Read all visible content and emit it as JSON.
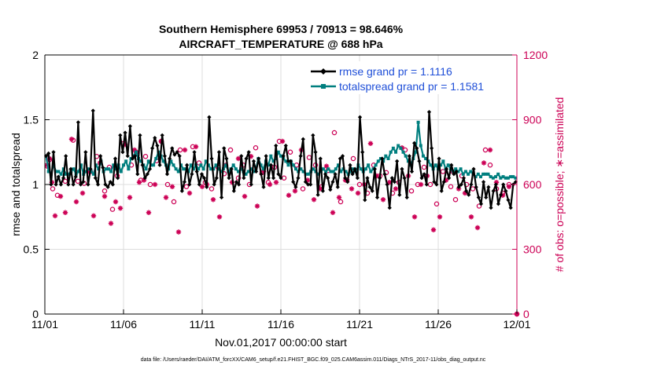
{
  "chart_data": {
    "type": "line",
    "title": "Southern Hemisphere 69953 / 70913 = 98.646%",
    "subtitle": "AIRCRAFT_TEMPERATURE @ 688 hPa",
    "xlabel": "Nov.01,2017 00:00:00 start",
    "ylabel_left": "rmse and totalspread",
    "ylabel_right": "# of obs: o=possible; ∗=assimilated",
    "x_tick_labels": [
      "11/01",
      "11/06",
      "11/11",
      "11/16",
      "11/21",
      "11/26",
      "12/01"
    ],
    "xlim_days": [
      0,
      30
    ],
    "ylim_left": [
      0,
      2
    ],
    "yticks_left": [
      "0",
      "0.5",
      "1",
      "1.5",
      "2"
    ],
    "ylim_right": [
      0,
      1200
    ],
    "yticks_right": [
      "0",
      "300",
      "600",
      "900",
      "1200"
    ],
    "series": [
      {
        "name": "rmse grand pr = 1.1116",
        "color": "#000000",
        "marker": "diamond",
        "values": [
          1.22,
          1.24,
          1.0,
          1.25,
          1.0,
          1.06,
          1.0,
          1.05,
          1.22,
          1.0,
          1.12,
          1.0,
          1.06,
          1.48,
          1.0,
          1.02,
          1.25,
          1.0,
          1.12,
          1.57,
          1.05,
          1.0,
          1.22,
          1.13,
          1.0,
          0.98,
          1.02,
          1.0,
          1.2,
          1.05,
          1.38,
          1.25,
          1.4,
          1.22,
          1.45,
          1.2,
          1.22,
          1.08,
          1.38,
          1.15,
          1.05,
          1.08,
          1.12,
          1.28,
          1.36,
          1.3,
          1.15,
          1.38,
          1.22,
          1.08,
          1.2,
          1.28,
          1.23,
          1.25,
          1.22,
          0.95,
          1.02,
          1.15,
          1.0,
          1.08,
          1.25,
          1.1,
          1.0,
          1.08,
          1.05,
          0.98,
          1.52,
          1.2,
          1.0,
          1.05,
          1.25,
          0.9,
          1.28,
          1.2,
          1.05,
          1.12,
          0.95,
          1.02,
          1.0,
          1.22,
          1.05,
          1.2,
          1.25,
          1.0,
          1.18,
          1.1,
          1.2,
          1.08,
          0.98,
          1.22,
          1.05,
          1.15,
          1.05,
          1.3,
          1.08,
          1.05,
          1.22,
          1.3,
          1.18,
          1.18,
          1.02,
          0.98,
          1.05,
          1.22,
          1.35,
          1.02,
          1.0,
          1.0,
          1.38,
          1.25,
          0.92,
          1.2,
          0.95,
          1.08,
          1.05,
          0.96,
          1.02,
          1.08,
          0.98,
          1.2,
          1.22,
          1.05,
          1.02,
          1.15,
          1.08,
          1.12,
          1.05,
          1.52,
          1.25,
          0.88,
          1.05,
          0.98,
          0.95,
          1.12,
          0.9,
          1.05,
          1.2,
          1.08,
          1.0,
          0.82,
          1.05,
          1.02,
          1.18,
          0.92,
          1.12,
          1.05,
          0.9,
          1.22,
          1.1,
          1.32,
          1.28,
          1.18,
          1.05,
          1.08,
          1.0,
          1.56,
          1.28,
          1.02,
          1.0,
          1.2,
          0.95,
          1.02,
          1.12,
          1.05,
          1.15,
          1.08,
          1.1,
          0.98,
          1.0,
          1.05,
          0.95,
          0.92,
          1.0,
          1.12,
          0.98,
          0.9,
          0.85,
          1.02,
          0.9,
          0.98,
          0.82,
          0.95,
          1.0,
          0.85,
          0.92,
          1.0,
          0.95,
          0.88,
          0.82,
          1.0,
          1.02
        ]
      },
      {
        "name": "totalspread grand pr = 1.1581",
        "color": "#007f7f",
        "marker": "square",
        "values": [
          1.22,
          1.1,
          1.08,
          1.15,
          1.1,
          1.1,
          1.08,
          1.12,
          1.08,
          1.08,
          1.1,
          1.12,
          1.08,
          1.1,
          1.15,
          1.08,
          1.1,
          1.12,
          1.1,
          1.08,
          1.15,
          1.12,
          1.18,
          1.1,
          1.12,
          1.12,
          1.1,
          1.15,
          1.12,
          1.15,
          1.1,
          1.15,
          1.18,
          1.12,
          1.2,
          1.22,
          1.25,
          1.2,
          1.18,
          1.15,
          1.12,
          1.18,
          1.15,
          1.15,
          1.2,
          1.25,
          1.22,
          1.18,
          1.15,
          1.12,
          1.18,
          1.15,
          1.12,
          1.1,
          1.15,
          1.12,
          1.12,
          1.1,
          1.15,
          1.12,
          1.15,
          1.12,
          1.15,
          1.12,
          1.18,
          1.15,
          1.12,
          1.12,
          1.15,
          1.12,
          1.1,
          1.12,
          1.15,
          1.1,
          1.12,
          1.15,
          1.12,
          1.1,
          1.12,
          1.1,
          1.08,
          1.1,
          1.12,
          1.1,
          1.12,
          1.2,
          1.15,
          1.12,
          1.18,
          1.15,
          1.22,
          1.18,
          1.2,
          1.25,
          1.22,
          1.2,
          1.18,
          1.15,
          1.18,
          1.15,
          1.12,
          1.1,
          1.12,
          1.1,
          1.08,
          1.08,
          1.1,
          1.12,
          1.1,
          1.08,
          1.1,
          1.12,
          1.1,
          1.12,
          1.1,
          1.1,
          1.12,
          1.15,
          1.1,
          1.12,
          1.1,
          1.08,
          1.1,
          1.12,
          1.1,
          1.15,
          1.12,
          1.1,
          1.12,
          1.15,
          1.1,
          1.12,
          1.15,
          1.18,
          1.2,
          1.18,
          1.22,
          1.2,
          1.25,
          1.28,
          1.25,
          1.3,
          1.28,
          1.25,
          1.22,
          1.18,
          1.15,
          1.2,
          1.25,
          1.48,
          1.3,
          1.22,
          1.2,
          1.18,
          1.15,
          1.12,
          1.15,
          1.12,
          1.15,
          1.18,
          1.12,
          1.15,
          1.12,
          1.1,
          1.12,
          1.1,
          1.12,
          1.08,
          1.1,
          1.08,
          1.1,
          1.08,
          1.06,
          1.08,
          1.06,
          1.08,
          1.08,
          1.08,
          1.06,
          1.05,
          1.06,
          1.08,
          1.05,
          1.06,
          1.05,
          1.05,
          1.06,
          1.06,
          1.05
        ]
      },
      {
        "name": "possible obs",
        "color": "#cc0055",
        "marker": "circle",
        "axis": "right",
        "points": [
          [
            0.15,
            685
          ],
          [
            0.3,
            715
          ],
          [
            0.5,
            580
          ],
          [
            0.8,
            550
          ],
          [
            1.3,
            615
          ],
          [
            1.8,
            805
          ],
          [
            2.1,
            615
          ],
          [
            2.5,
            605
          ],
          [
            2.9,
            660
          ],
          [
            3.3,
            730
          ],
          [
            3.8,
            570
          ],
          [
            4.1,
            680
          ],
          [
            4.3,
            485
          ],
          [
            4.6,
            640
          ],
          [
            5.0,
            790
          ],
          [
            5.5,
            690
          ],
          [
            5.8,
            750
          ],
          [
            6.1,
            620
          ],
          [
            6.4,
            730
          ],
          [
            6.7,
            600
          ],
          [
            7.1,
            710
          ],
          [
            7.4,
            800
          ],
          [
            7.8,
            600
          ],
          [
            8.2,
            520
          ],
          [
            8.6,
            760
          ],
          [
            9.0,
            590
          ],
          [
            9.4,
            775
          ],
          [
            9.8,
            700
          ],
          [
            10.2,
            610
          ],
          [
            10.6,
            580
          ],
          [
            11.0,
            680
          ],
          [
            11.4,
            650
          ],
          [
            11.8,
            760
          ],
          [
            12.3,
            630
          ],
          [
            12.6,
            690
          ],
          [
            13.0,
            600
          ],
          [
            13.4,
            770
          ],
          [
            13.8,
            655
          ],
          [
            14.2,
            610
          ],
          [
            14.6,
            680
          ],
          [
            14.9,
            800
          ],
          [
            15.2,
            630
          ],
          [
            15.6,
            750
          ],
          [
            16.0,
            690
          ],
          [
            16.4,
            580
          ],
          [
            16.8,
            725
          ],
          [
            17.2,
            690
          ],
          [
            17.6,
            590
          ],
          [
            18.0,
            665
          ],
          [
            18.4,
            840
          ],
          [
            18.8,
            520
          ],
          [
            19.2,
            620
          ],
          [
            19.6,
            720
          ],
          [
            20.0,
            600
          ],
          [
            20.5,
            560
          ],
          [
            20.9,
            690
          ],
          [
            21.3,
            640
          ],
          [
            21.7,
            655
          ],
          [
            22.1,
            560
          ],
          [
            22.5,
            610
          ],
          [
            22.9,
            760
          ],
          [
            23.3,
            570
          ],
          [
            23.7,
            600
          ],
          [
            24.1,
            680
          ],
          [
            24.5,
            600
          ],
          [
            24.9,
            510
          ],
          [
            25.3,
            660
          ],
          [
            25.8,
            590
          ],
          [
            26.1,
            530
          ],
          [
            26.5,
            640
          ],
          [
            26.8,
            600
          ],
          [
            27.2,
            580
          ],
          [
            27.6,
            500
          ],
          [
            28.0,
            760
          ],
          [
            28.3,
            690
          ],
          [
            28.7,
            580
          ],
          [
            29.1,
            560
          ],
          [
            29.5,
            600
          ],
          [
            30.0,
            0
          ]
        ]
      },
      {
        "name": "assimilated obs",
        "color": "#cc0055",
        "marker": "asterisk",
        "axis": "right",
        "points": [
          [
            0.15,
            690
          ],
          [
            0.3,
            720
          ],
          [
            0.45,
            610
          ],
          [
            0.65,
            455
          ],
          [
            1.0,
            545
          ],
          [
            1.3,
            470
          ],
          [
            1.7,
            810
          ],
          [
            2.0,
            520
          ],
          [
            2.4,
            560
          ],
          [
            2.8,
            660
          ],
          [
            3.1,
            455
          ],
          [
            3.5,
            700
          ],
          [
            3.8,
            545
          ],
          [
            4.2,
            420
          ],
          [
            4.5,
            520
          ],
          [
            4.8,
            490
          ],
          [
            5.1,
            785
          ],
          [
            5.4,
            540
          ],
          [
            5.7,
            760
          ],
          [
            6.0,
            610
          ],
          [
            6.3,
            620
          ],
          [
            6.6,
            470
          ],
          [
            7.0,
            600
          ],
          [
            7.4,
            800
          ],
          [
            7.7,
            540
          ],
          [
            8.1,
            590
          ],
          [
            8.5,
            380
          ],
          [
            8.9,
            760
          ],
          [
            9.2,
            560
          ],
          [
            9.6,
            775
          ],
          [
            10.0,
            590
          ],
          [
            10.3,
            600
          ],
          [
            10.7,
            530
          ],
          [
            11.1,
            450
          ],
          [
            11.5,
            690
          ],
          [
            11.9,
            610
          ],
          [
            12.3,
            720
          ],
          [
            12.7,
            545
          ],
          [
            13.1,
            730
          ],
          [
            13.5,
            500
          ],
          [
            13.9,
            660
          ],
          [
            14.3,
            600
          ],
          [
            14.7,
            610
          ],
          [
            15.1,
            800
          ],
          [
            15.5,
            550
          ],
          [
            15.9,
            570
          ],
          [
            16.3,
            760
          ],
          [
            16.7,
            620
          ],
          [
            17.1,
            530
          ],
          [
            17.5,
            580
          ],
          [
            17.9,
            685
          ],
          [
            18.3,
            470
          ],
          [
            18.7,
            540
          ],
          [
            19.1,
            620
          ],
          [
            19.5,
            580
          ],
          [
            19.9,
            560
          ],
          [
            20.3,
            600
          ],
          [
            20.7,
            790
          ],
          [
            21.1,
            640
          ],
          [
            21.5,
            530
          ],
          [
            21.9,
            610
          ],
          [
            22.3,
            580
          ],
          [
            22.7,
            770
          ],
          [
            23.1,
            640
          ],
          [
            23.5,
            450
          ],
          [
            23.9,
            600
          ],
          [
            24.3,
            640
          ],
          [
            24.7,
            390
          ],
          [
            25.1,
            450
          ],
          [
            25.5,
            620
          ],
          [
            25.9,
            660
          ],
          [
            26.3,
            580
          ],
          [
            26.7,
            560
          ],
          [
            27.1,
            450
          ],
          [
            27.5,
            400
          ],
          [
            27.9,
            700
          ],
          [
            28.3,
            760
          ],
          [
            28.7,
            610
          ],
          [
            29.1,
            550
          ],
          [
            29.5,
            590
          ],
          [
            30.0,
            0
          ]
        ]
      }
    ],
    "legend_position": "top-right"
  },
  "footer": "data file: /Users/raeder/DAI/ATM_forcXX/CAM6_setup/f.e21.FHIST_BGC.f09_025.CAM6assim.011/Diags_NTrS_2017-11/obs_diag_output.nc"
}
